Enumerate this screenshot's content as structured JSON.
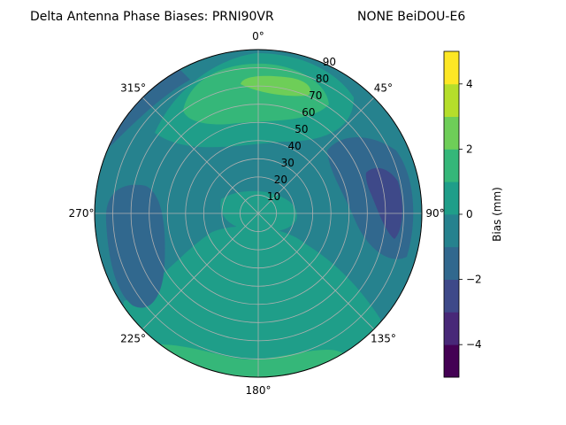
{
  "chart_data": {
    "type": "heatmap",
    "projection": "polar",
    "title_left": "Delta Antenna Phase Biases: PRNI90VR",
    "title_right": "NONE BeiDOU-E6",
    "angular_ticks": [
      "0°",
      "45°",
      "90°",
      "135°",
      "180°",
      "225°",
      "270°",
      "315°"
    ],
    "radial_ticks": [
      "10",
      "20",
      "30",
      "40",
      "50",
      "60",
      "70",
      "80",
      "90"
    ],
    "radial_range": [
      0,
      90
    ],
    "grid": true,
    "colorbar": {
      "label": "Bias (mm)",
      "range": [
        -5,
        5
      ],
      "ticks": [
        "4",
        "2",
        "0",
        "−2",
        "−4"
      ],
      "levels": [
        -5,
        -4,
        -3,
        -2,
        -1,
        0,
        1,
        2,
        3,
        4,
        5
      ],
      "colors": [
        "#440154",
        "#482878",
        "#3e4989",
        "#31688e",
        "#26828e",
        "#1f9e89",
        "#35b779",
        "#6ece58",
        "#b5de2b",
        "#fde725"
      ]
    },
    "field_regions": [
      {
        "name": "background",
        "azimuth_deg": 0,
        "zenith_deg": 0,
        "level": 0.5
      },
      {
        "name": "north-high",
        "azimuth_deg": 355,
        "zenith_deg": 72,
        "level": 1.5
      },
      {
        "name": "north-peak",
        "azimuth_deg": 5,
        "zenith_deg": 78,
        "level": 2.5
      },
      {
        "name": "east-low",
        "azimuth_deg": 78,
        "zenith_deg": 72,
        "level": -1.5
      },
      {
        "name": "east-lowest",
        "azimuth_deg": 82,
        "zenith_deg": 74,
        "level": -2.5
      },
      {
        "name": "west-low",
        "azimuth_deg": 265,
        "zenith_deg": 70,
        "level": -1.5
      },
      {
        "name": "south-high",
        "azimuth_deg": 180,
        "zenith_deg": 65,
        "level": 1.5
      },
      {
        "name": "outer-east-mid",
        "azimuth_deg": 120,
        "zenith_deg": 60,
        "level": -0.5
      }
    ]
  }
}
